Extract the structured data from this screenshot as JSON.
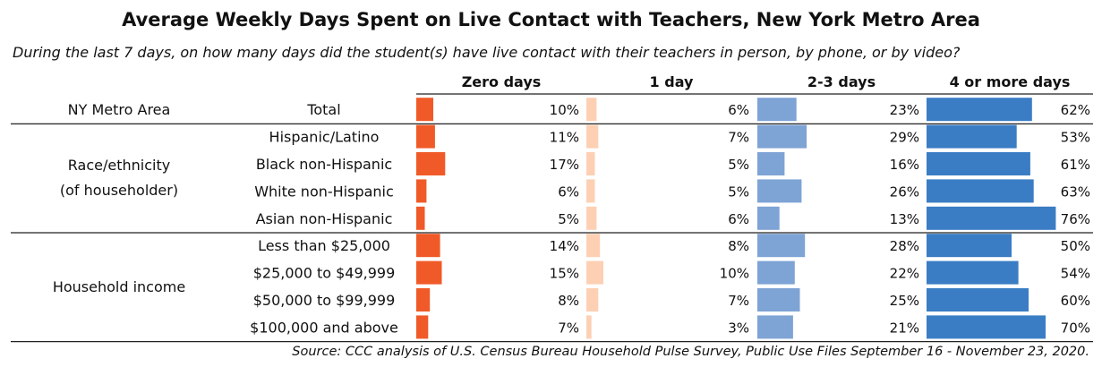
{
  "chart_data": {
    "type": "bar",
    "title": "Average Weekly Days Spent on Live Contact with Teachers, New York Metro Area",
    "subtitle": "During the last 7 days, on how many days did the student(s) have live contact with their teachers in person, by phone, or by video?",
    "source": "Source: CCC analysis of U.S. Census Bureau Household Pulse Survey, Public Use Files September 16 - November 23, 2020.",
    "columns": [
      "Zero days",
      "1 day",
      "2-3 days",
      "4 or more days"
    ],
    "colors": [
      "#f05a28",
      "#fdd0b4",
      "#7ea3d5",
      "#3a7dc4"
    ],
    "groups": [
      {
        "label": [
          "NY Metro Area"
        ],
        "rows": [
          {
            "label": "Total",
            "values": [
              10,
              6,
              23,
              62
            ]
          }
        ]
      },
      {
        "label": [
          "Race/ethnicity",
          "(of householder)"
        ],
        "rows": [
          {
            "label": "Hispanic/Latino",
            "values": [
              11,
              7,
              29,
              53
            ]
          },
          {
            "label": "Black non-Hispanic",
            "values": [
              17,
              5,
              16,
              61
            ]
          },
          {
            "label": "White non-Hispanic",
            "values": [
              6,
              5,
              26,
              63
            ]
          },
          {
            "label": "Asian non-Hispanic",
            "values": [
              5,
              6,
              13,
              76
            ]
          }
        ]
      },
      {
        "label": [
          "Household income"
        ],
        "rows": [
          {
            "label": "Less than $25,000",
            "values": [
              14,
              8,
              28,
              50
            ]
          },
          {
            "label": "$25,000 to $49,999",
            "values": [
              15,
              10,
              22,
              54
            ]
          },
          {
            "label": "$50,000 to $99,999",
            "values": [
              8,
              7,
              25,
              60
            ]
          },
          {
            "label": "$100,000 and above",
            "values": [
              7,
              3,
              21,
              70
            ]
          }
        ]
      }
    ],
    "value_suffix": "%"
  }
}
